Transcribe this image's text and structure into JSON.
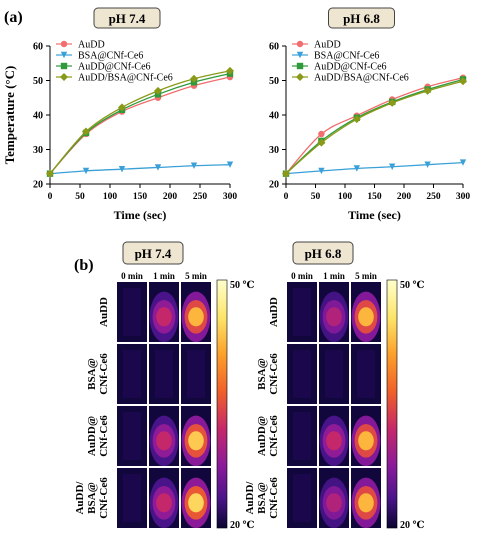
{
  "panel_labels": {
    "a": "(a)",
    "b": "(b)"
  },
  "colors": {
    "AuDD": "#f26d6d",
    "BSA@CNf-Ce6": "#3aa0d8",
    "AuDD@CNf-Ce6": "#2e9a3a",
    "AuDD/BSA@CNf-Ce6": "#8a9a18",
    "ph_box_fill": "#efe6d2",
    "cbar_top": "#ffffcc",
    "cbar_bottom": "#0a0530"
  },
  "chart_data": [
    {
      "type": "line",
      "title": "pH 7.4",
      "xlabel": "Time (sec)",
      "ylabel": "Temperature (°C)",
      "xlim": [
        0,
        300
      ],
      "ylim": [
        20,
        60
      ],
      "xticks": [
        "0",
        "50",
        "100",
        "150",
        "200",
        "250",
        "300"
      ],
      "yticks": [
        "20",
        "30",
        "40",
        "50",
        "60"
      ],
      "legend_position": "top-left",
      "x": [
        0,
        60,
        120,
        180,
        240,
        300
      ],
      "series": [
        {
          "name": "AuDD",
          "values": [
            23,
            34.5,
            41,
            45,
            48.5,
            51
          ]
        },
        {
          "name": "BSA@CNf-Ce6",
          "values": [
            23,
            23.8,
            24.3,
            24.8,
            25.3,
            25.6
          ]
        },
        {
          "name": "AuDD@CNf-Ce6",
          "values": [
            23,
            34.8,
            41.5,
            46,
            49.5,
            52
          ]
        },
        {
          "name": "AuDD/BSA@CNf-Ce6",
          "values": [
            23,
            35.2,
            42.2,
            47,
            50.5,
            52.8
          ]
        }
      ]
    },
    {
      "type": "line",
      "title": "pH 6.8",
      "xlabel": "Time (sec)",
      "ylabel": "",
      "xlim": [
        0,
        300
      ],
      "ylim": [
        20,
        60
      ],
      "xticks": [
        "0",
        "50",
        "100",
        "150",
        "200",
        "250",
        "300"
      ],
      "yticks": [
        "20",
        "30",
        "40",
        "50",
        "60"
      ],
      "legend_position": "top-left",
      "x": [
        0,
        60,
        120,
        180,
        240,
        300
      ],
      "series": [
        {
          "name": "AuDD",
          "values": [
            23,
            34.5,
            39.8,
            44.5,
            48.2,
            50.8
          ]
        },
        {
          "name": "BSA@CNf-Ce6",
          "values": [
            23,
            23.8,
            24.5,
            25,
            25.6,
            26.2
          ]
        },
        {
          "name": "AuDD@CNf-Ce6",
          "values": [
            23,
            32.5,
            39.2,
            43.8,
            47.4,
            50.3
          ]
        },
        {
          "name": "AuDD/BSA@CNf-Ce6",
          "values": [
            23,
            32,
            38.8,
            43.5,
            47,
            49.8
          ]
        }
      ]
    }
  ],
  "thermal": [
    {
      "title": "pH 7.4",
      "columns": [
        "0 min",
        "1 min",
        "5 min"
      ],
      "rows": [
        {
          "label_lines": [
            "AuDD"
          ],
          "levels": [
            0.03,
            0.55,
            0.85
          ]
        },
        {
          "label_lines": [
            "BSA@",
            "CNf-Ce6"
          ],
          "levels": [
            0.02,
            0.03,
            0.06
          ]
        },
        {
          "label_lines": [
            "AuDD@",
            "CNf-Ce6"
          ],
          "levels": [
            0.03,
            0.55,
            0.88
          ]
        },
        {
          "label_lines": [
            "AuDD/",
            "BSA@",
            "CNf-Ce6"
          ],
          "levels": [
            0.03,
            0.55,
            0.9
          ]
        }
      ],
      "colorbar": {
        "max": "50 ℃",
        "min": "20 ℃"
      }
    },
    {
      "title": "pH 6.8",
      "columns": [
        "0 min",
        "1 min",
        "5 min"
      ],
      "rows": [
        {
          "label_lines": [
            "AuDD"
          ],
          "levels": [
            0.03,
            0.5,
            0.85
          ]
        },
        {
          "label_lines": [
            "BSA@",
            "CNf-Ce6"
          ],
          "levels": [
            0.02,
            0.03,
            0.05
          ]
        },
        {
          "label_lines": [
            "AuDD@",
            "CNf-Ce6"
          ],
          "levels": [
            0.04,
            0.55,
            0.85
          ]
        },
        {
          "label_lines": [
            "AuDD/",
            "BSA@",
            "CNf-Ce6"
          ],
          "levels": [
            0.03,
            0.5,
            0.85
          ]
        }
      ],
      "colorbar": {
        "max": "50 ℃",
        "min": "20 ℃"
      }
    }
  ]
}
